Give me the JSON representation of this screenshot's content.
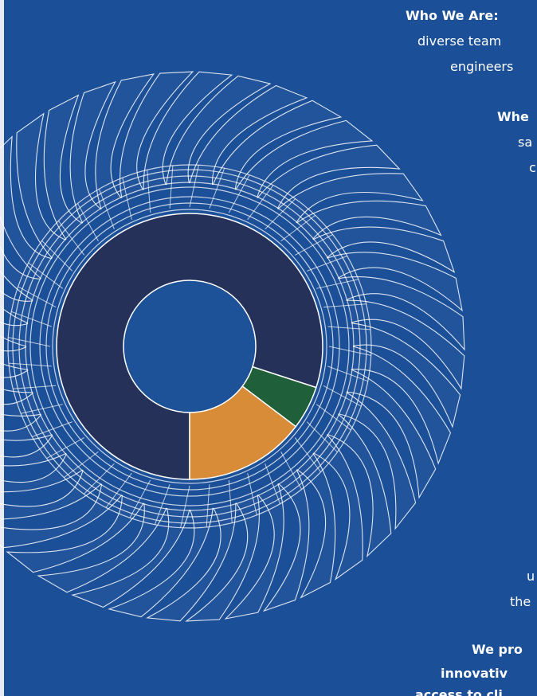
{
  "page": {
    "texts": [
      {
        "text": "Who We Are:",
        "bold": true
      },
      {
        "text": "diverse team",
        "bold": false
      },
      {
        "text": "engineers",
        "bold": false
      },
      {
        "text": "Whe",
        "bold": true
      },
      {
        "text": "sa",
        "bold": false
      },
      {
        "text": "c",
        "bold": false
      },
      {
        "text": "u",
        "bold": false
      },
      {
        "text": "the",
        "bold": false
      },
      {
        "text": "We pro",
        "bold": true
      },
      {
        "text": "innovativ",
        "bold": true
      },
      {
        "text": "access to cli",
        "bold": true
      }
    ]
  },
  "chart_data": {
    "type": "donut",
    "values": [
      80,
      5.3,
      14.7
    ],
    "colors": [
      "#263159",
      "#1f5f3a",
      "#d98c37"
    ]
  }
}
